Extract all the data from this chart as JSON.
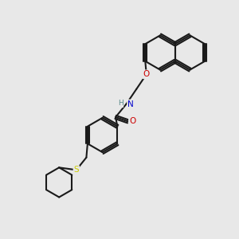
{
  "bg_color": "#e8e8e8",
  "bond_color": "#1a1a1a",
  "line_width": 1.5,
  "atom_colors": {
    "O": "#cc0000",
    "N": "#0000cc",
    "S": "#cccc00",
    "H": "#5a8a8a"
  },
  "figsize": [
    3.0,
    3.0
  ],
  "dpi": 100,
  "xlim": [
    0,
    10
  ],
  "ylim": [
    0,
    10
  ]
}
